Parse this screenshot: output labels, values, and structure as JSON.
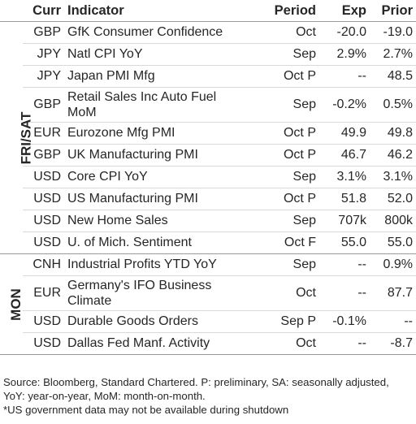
{
  "header": {
    "curr": "Curr",
    "indicator": "Indicator",
    "period": "Period",
    "exp": "Exp",
    "prior": "Prior"
  },
  "groups": [
    {
      "day": "FRI/SAT",
      "rows": [
        {
          "curr": "GBP",
          "indicator": "GfK Consumer Confidence",
          "period": "Oct",
          "exp": "-20.0",
          "prior": "-19.0"
        },
        {
          "curr": "JPY",
          "indicator": "Natl CPI YoY",
          "period": "Sep",
          "exp": "2.9%",
          "prior": "2.7%"
        },
        {
          "curr": "JPY",
          "indicator": "Japan PMI Mfg",
          "period": "Oct P",
          "exp": "--",
          "prior": "48.5"
        },
        {
          "curr": "GBP",
          "indicator": "Retail Sales Inc Auto Fuel MoM",
          "period": "Sep",
          "exp": "-0.2%",
          "prior": "0.5%"
        },
        {
          "curr": "EUR",
          "indicator": "Eurozone Mfg PMI",
          "period": "Oct P",
          "exp": "49.9",
          "prior": "49.8"
        },
        {
          "curr": "GBP",
          "indicator": "UK Manufacturing PMI",
          "period": "Oct P",
          "exp": "46.7",
          "prior": "46.2"
        },
        {
          "curr": "USD",
          "indicator": "Core CPI YoY",
          "period": "Sep",
          "exp": "3.1%",
          "prior": "3.1%"
        },
        {
          "curr": "USD",
          "indicator": "US Manufacturing PMI",
          "period": "Oct P",
          "exp": "51.8",
          "prior": "52.0"
        },
        {
          "curr": "USD",
          "indicator": "New Home Sales",
          "period": "Sep",
          "exp": "707k",
          "prior": "800k"
        },
        {
          "curr": "USD",
          "indicator": "U. of Mich. Sentiment",
          "period": "Oct F",
          "exp": "55.0",
          "prior": "55.0"
        }
      ]
    },
    {
      "day": "MON",
      "rows": [
        {
          "curr": "CNH",
          "indicator": "Industrial Profits YTD YoY",
          "period": "Sep",
          "exp": "--",
          "prior": "0.9%"
        },
        {
          "curr": "EUR",
          "indicator": "Germany's IFO Business Climate",
          "period": "Oct",
          "exp": "--",
          "prior": "87.7"
        },
        {
          "curr": "USD",
          "indicator": "Durable Goods Orders",
          "period": "Sep P",
          "exp": "-0.1%",
          "prior": "--"
        },
        {
          "curr": "USD",
          "indicator": "Dallas Fed Manf. Activity",
          "period": "Oct",
          "exp": "--",
          "prior": "-8.7"
        }
      ]
    }
  ],
  "footer": {
    "line1": "Source: Bloomberg, Standard Chartered. P: preliminary, SA: seasonally adjusted, YoY: year-on-year, MoM: month-on-month.",
    "line2": "*US government data may not be available during shutdown"
  }
}
